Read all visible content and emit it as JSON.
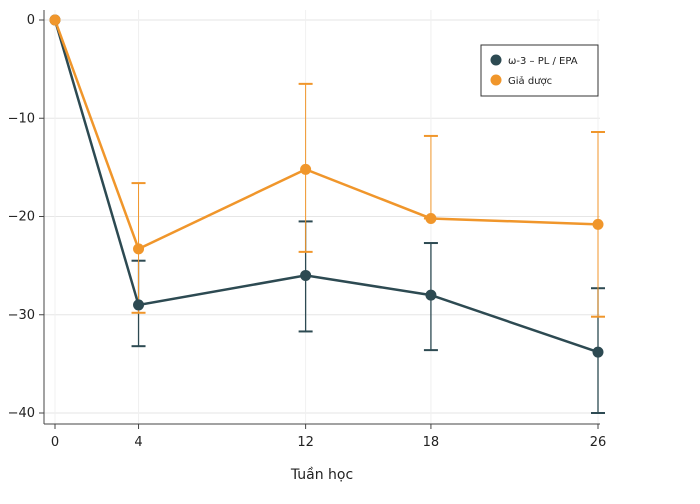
{
  "chart_data": {
    "type": "line",
    "title": "",
    "xlabel": "Tuần học",
    "ylabel": "",
    "x": [
      0,
      4,
      12,
      18,
      26
    ],
    "x_ticks": [
      "0",
      "4",
      "12",
      "18",
      "26"
    ],
    "y_ticks": [
      "0",
      "−10",
      "−20",
      "−30",
      "−40"
    ],
    "y_tick_values": [
      0,
      -10,
      -20,
      -30,
      -40
    ],
    "xlim": [
      -0.5,
      27
    ],
    "ylim": [
      -41.5,
      1
    ],
    "grid": true,
    "legend_position": "top-right",
    "series": [
      {
        "name": "ω-3 – PL / EPA",
        "color": "#2d4a52",
        "values": [
          0,
          -29,
          -26,
          -28,
          -33.8
        ],
        "err_low": [
          0,
          -33.2,
          -31.7,
          -33.6,
          -40
        ],
        "err_high": [
          0,
          -24.5,
          -20.5,
          -22.7,
          -27.3
        ]
      },
      {
        "name": "Giả dược",
        "color": "#f0962b",
        "values": [
          0,
          -23.3,
          -15.2,
          -20.2,
          -20.8
        ],
        "err_low": [
          0,
          -29.8,
          -23.6,
          -20.2,
          -30.2
        ],
        "err_high": [
          0,
          -16.6,
          -6.5,
          -11.8,
          -11.4
        ]
      }
    ]
  }
}
